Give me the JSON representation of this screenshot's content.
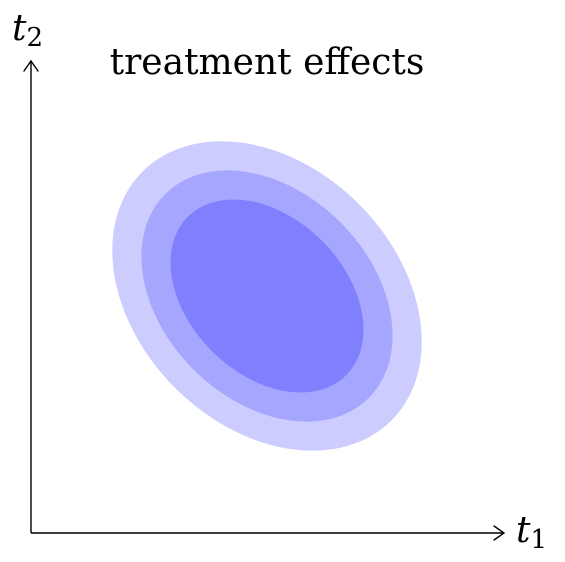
{
  "title": "treatment effects",
  "axes": {
    "x_label": "t",
    "x_subscript": "1",
    "y_label": "t",
    "y_subscript": "2"
  },
  "contours": [
    {
      "level": "outer",
      "color": "#ccccff"
    },
    {
      "level": "middle",
      "color": "#a6a6ff"
    },
    {
      "level": "inner",
      "color": "#8080ff"
    }
  ]
}
